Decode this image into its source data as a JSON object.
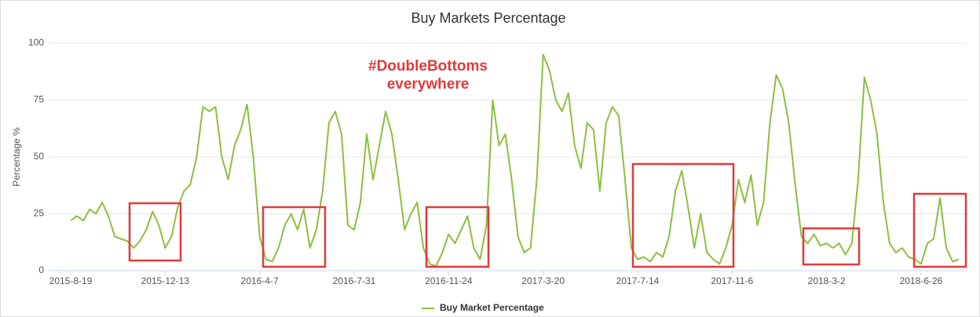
{
  "chart_data": {
    "type": "line",
    "title": "Buy Markets Percentage",
    "y_label": "Percentage %",
    "annotation": [
      "#DoubleBottoms",
      "everywhere"
    ],
    "categories": [
      "2015-8-19",
      null,
      null,
      null,
      null,
      null,
      null,
      null,
      null,
      null,
      null,
      null,
      null,
      null,
      null,
      "2015-12-13",
      null,
      null,
      null,
      null,
      null,
      null,
      null,
      null,
      null,
      null,
      null,
      null,
      null,
      null,
      "2016-4-7",
      null,
      null,
      null,
      null,
      null,
      null,
      null,
      null,
      null,
      null,
      null,
      null,
      null,
      null,
      "2016-7-31",
      null,
      null,
      null,
      null,
      null,
      null,
      null,
      null,
      null,
      null,
      null,
      null,
      null,
      null,
      "2016-11-24",
      null,
      null,
      null,
      null,
      null,
      null,
      null,
      null,
      null,
      null,
      null,
      null,
      null,
      null,
      "2017-3-20",
      null,
      null,
      null,
      null,
      null,
      null,
      null,
      null,
      null,
      null,
      null,
      null,
      null,
      null,
      "2017-7-14",
      null,
      null,
      null,
      null,
      null,
      null,
      null,
      null,
      null,
      null,
      null,
      null,
      null,
      null,
      "2017-11-6",
      null,
      null,
      null,
      null,
      null,
      null,
      null,
      null,
      null,
      null,
      null,
      null,
      null,
      null,
      "2018-3-2",
      null,
      null,
      null,
      null,
      null,
      null,
      null,
      null,
      null,
      null,
      null,
      null,
      null,
      null,
      "2018-6-26",
      null,
      null,
      null,
      null,
      null,
      null
    ],
    "series": [
      {
        "name": "Buy Market Percentage",
        "color": "#8cbf3f",
        "values": [
          22,
          24,
          22,
          27,
          25,
          30,
          24,
          15,
          14,
          13,
          10,
          13,
          18,
          26,
          20,
          10,
          15,
          28,
          35,
          38,
          50,
          72,
          70,
          72,
          50,
          40,
          55,
          62,
          73,
          50,
          15,
          5,
          4,
          10,
          20,
          25,
          18,
          27,
          10,
          18,
          35,
          65,
          70,
          60,
          20,
          18,
          30,
          60,
          40,
          55,
          70,
          60,
          40,
          18,
          25,
          30,
          10,
          3,
          2,
          8,
          16,
          12,
          18,
          24,
          10,
          5,
          20,
          75,
          55,
          60,
          40,
          15,
          8,
          10,
          40,
          95,
          88,
          75,
          70,
          78,
          55,
          45,
          65,
          62,
          35,
          65,
          72,
          68,
          40,
          10,
          5,
          6,
          4,
          8,
          6,
          15,
          35,
          44,
          28,
          10,
          25,
          8,
          5,
          3,
          10,
          20,
          40,
          30,
          42,
          20,
          30,
          65,
          86,
          80,
          65,
          38,
          15,
          12,
          16,
          11,
          12,
          10,
          12,
          7,
          12,
          40,
          85,
          75,
          60,
          30,
          12,
          8,
          10,
          6,
          5,
          3,
          12,
          14,
          32,
          10,
          4,
          5
        ]
      }
    ],
    "ylim": [
      0,
      100
    ],
    "yticks": [
      0,
      25,
      50,
      75,
      100
    ],
    "grid": true
  }
}
